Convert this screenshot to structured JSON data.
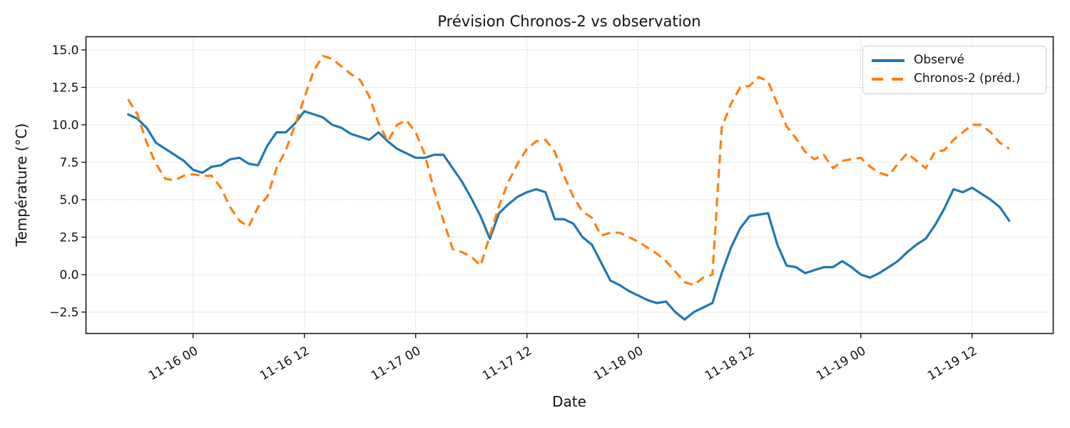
{
  "figure": {
    "background": "#ffffff"
  },
  "chart_data": {
    "type": "line",
    "title": "Prévision Chronos-2 vs observation",
    "xlabel": "Date",
    "ylabel": "Température (°C)",
    "x_unit": "hours relative to 11-16 00:00 (hourly points, start 11-15 17:00)",
    "xlim_hours": [
      -11.55,
      92.75
    ],
    "ylim": [
      -3.93,
      15.88
    ],
    "grid": true,
    "legend_position": "upper-right",
    "x_ticks": [
      {
        "hour": 0,
        "label": "11-16 00"
      },
      {
        "hour": 12,
        "label": "11-16 12"
      },
      {
        "hour": 24,
        "label": "11-17 00"
      },
      {
        "hour": 36,
        "label": "11-17 12"
      },
      {
        "hour": 48,
        "label": "11-18 00"
      },
      {
        "hour": 60,
        "label": "11-18 12"
      },
      {
        "hour": 72,
        "label": "11-19 00"
      },
      {
        "hour": 84,
        "label": "11-19 12"
      }
    ],
    "y_ticks": [
      {
        "value": -2.5,
        "label": "−2.5"
      },
      {
        "value": 0.0,
        "label": "0.0"
      },
      {
        "value": 2.5,
        "label": "2.5"
      },
      {
        "value": 5.0,
        "label": "5.0"
      },
      {
        "value": 7.5,
        "label": "7.5"
      },
      {
        "value": 10.0,
        "label": "10.0"
      },
      {
        "value": 12.5,
        "label": "12.5"
      },
      {
        "value": 15.0,
        "label": "15.0"
      }
    ],
    "x_hours": [
      -7,
      -6,
      -5,
      -4,
      -3,
      -2,
      -1,
      0,
      1,
      2,
      3,
      4,
      5,
      6,
      7,
      8,
      9,
      10,
      11,
      12,
      13,
      14,
      15,
      16,
      17,
      18,
      19,
      20,
      21,
      22,
      23,
      24,
      25,
      26,
      27,
      28,
      29,
      30,
      31,
      32,
      33,
      34,
      35,
      36,
      37,
      38,
      39,
      40,
      41,
      42,
      43,
      44,
      45,
      46,
      47,
      48,
      49,
      50,
      51,
      52,
      53,
      54,
      55,
      56,
      57,
      58,
      59,
      60,
      61,
      62,
      63,
      64,
      65,
      66,
      67,
      68,
      69,
      70,
      71,
      72,
      73,
      74,
      75,
      76,
      77,
      78,
      79,
      80,
      81,
      82,
      83,
      84,
      85,
      86,
      87,
      88
    ],
    "series": [
      {
        "name": "Observé",
        "color": "#1f77b4",
        "style": "solid",
        "width": 3.2,
        "values": [
          10.7,
          10.4,
          9.8,
          8.8,
          8.4,
          8.0,
          7.6,
          7.0,
          6.8,
          7.2,
          7.3,
          7.7,
          7.8,
          7.4,
          7.3,
          8.6,
          9.5,
          9.5,
          10.1,
          10.9,
          10.7,
          10.5,
          10.0,
          9.8,
          9.4,
          9.2,
          9.0,
          9.5,
          8.9,
          8.4,
          8.1,
          7.8,
          7.8,
          8.0,
          8.0,
          7.1,
          6.2,
          5.1,
          3.9,
          2.4,
          4.1,
          4.7,
          5.2,
          5.5,
          5.7,
          5.5,
          3.7,
          3.7,
          3.4,
          2.5,
          2.0,
          0.8,
          -0.4,
          -0.7,
          -1.1,
          -1.4,
          -1.7,
          -1.9,
          -1.8,
          -2.5,
          -3.0,
          -2.5,
          -2.2,
          -1.9,
          0.1,
          1.8,
          3.1,
          3.9,
          4.0,
          4.1,
          2.0,
          0.6,
          0.5,
          0.1,
          0.3,
          0.5,
          0.5,
          0.9,
          0.5,
          0.0,
          -0.2,
          0.1,
          0.5,
          0.9,
          1.5,
          2.0,
          2.4,
          3.3,
          4.4,
          5.7,
          5.5,
          5.8,
          5.4,
          5.0,
          4.5,
          3.6
        ]
      },
      {
        "name": "Chronos-2 (préd.)",
        "color": "#ff7f0e",
        "style": "dashed",
        "dash": [
          12.5,
          7.6
        ],
        "width": 3.2,
        "values": [
          11.7,
          10.7,
          8.8,
          7.4,
          6.4,
          6.3,
          6.6,
          6.7,
          6.6,
          6.6,
          5.8,
          4.5,
          3.6,
          3.2,
          4.5,
          5.2,
          7.1,
          8.3,
          10.0,
          11.8,
          13.6,
          14.6,
          14.4,
          13.9,
          13.4,
          13.0,
          11.9,
          10.1,
          8.9,
          10.0,
          10.3,
          9.5,
          8.0,
          5.6,
          3.6,
          1.7,
          1.5,
          1.2,
          0.6,
          2.6,
          4.6,
          6.2,
          7.4,
          8.4,
          8.9,
          9.0,
          8.2,
          6.6,
          5.2,
          4.2,
          3.8,
          2.6,
          2.8,
          2.8,
          2.5,
          2.2,
          1.8,
          1.4,
          0.9,
          0.2,
          -0.5,
          -0.7,
          -0.2,
          0.0,
          9.8,
          11.4,
          12.5,
          12.6,
          13.2,
          12.9,
          11.4,
          9.9,
          9.1,
          8.2,
          7.7,
          8.0,
          7.1,
          7.6,
          7.7,
          7.8,
          7.2,
          6.8,
          6.6,
          7.4,
          8.1,
          7.6,
          7.1,
          8.2,
          8.3,
          9.0,
          9.5,
          10.0,
          10.0,
          9.5,
          8.8,
          8.4
        ]
      }
    ],
    "style": {
      "spine_color": "#1a1a1a",
      "grid_color": "#c8c8c8",
      "tick_label_size": 17,
      "x_tick_rotation_deg": 30
    }
  }
}
